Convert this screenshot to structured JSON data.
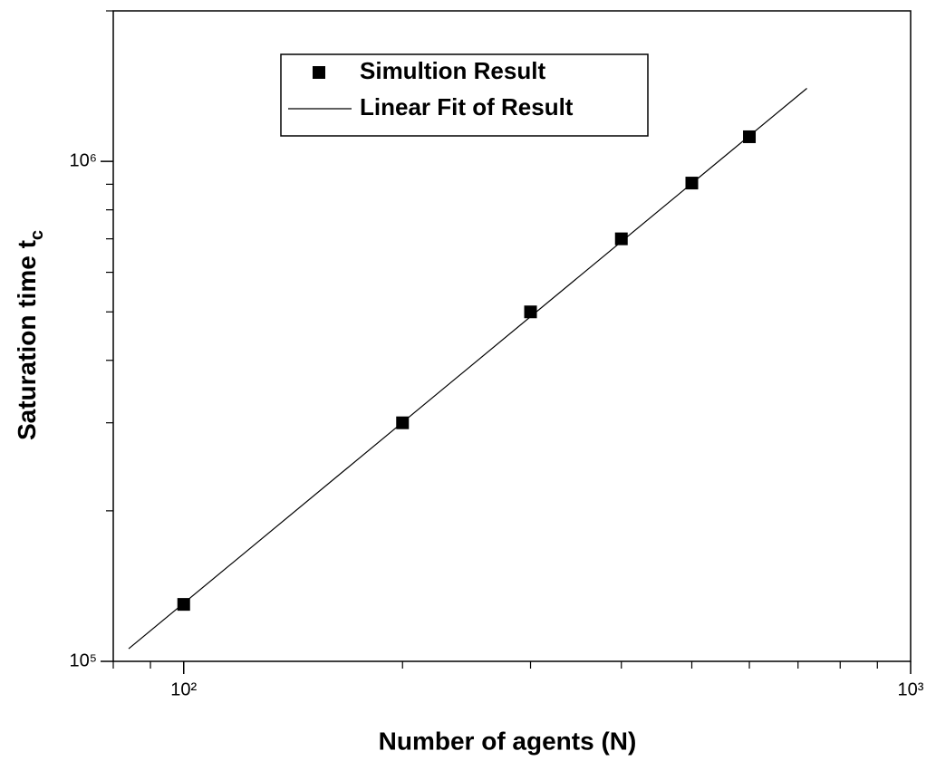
{
  "chart_data": {
    "type": "scatter",
    "x_label": "Number of agents (N)",
    "y_label": {
      "text": "Saturation time t",
      "subscript": "c"
    },
    "xscale": "log",
    "yscale": "log",
    "xlim": [
      80,
      1000
    ],
    "ylim": [
      100000,
      2000000
    ],
    "xticks": [
      {
        "value": 100,
        "label": "10²"
      },
      {
        "value": 1000,
        "label": "10³"
      }
    ],
    "yticks": [
      {
        "value": 100000,
        "label": "10⁵"
      },
      {
        "value": 1000000,
        "label": "10⁶"
      }
    ],
    "xminorticks": [
      80,
      90,
      200,
      300,
      400,
      500,
      600,
      700,
      800,
      900
    ],
    "yminorticks": [
      200000,
      300000,
      400000,
      500000,
      600000,
      700000,
      800000,
      900000,
      2000000
    ],
    "legend": "top-center",
    "series": [
      {
        "name": "Simultion Result",
        "mode": "markers",
        "color": "#000000",
        "x": [
          100,
          200,
          300,
          400,
          500,
          600
        ],
        "values": [
          130000,
          300000,
          500000,
          700000,
          905000,
          1120000
        ]
      },
      {
        "name": "Linear Fit of Result",
        "mode": "line",
        "color": "#000000",
        "x": [
          84,
          720
        ],
        "values": [
          106000,
          1400000
        ]
      }
    ]
  }
}
